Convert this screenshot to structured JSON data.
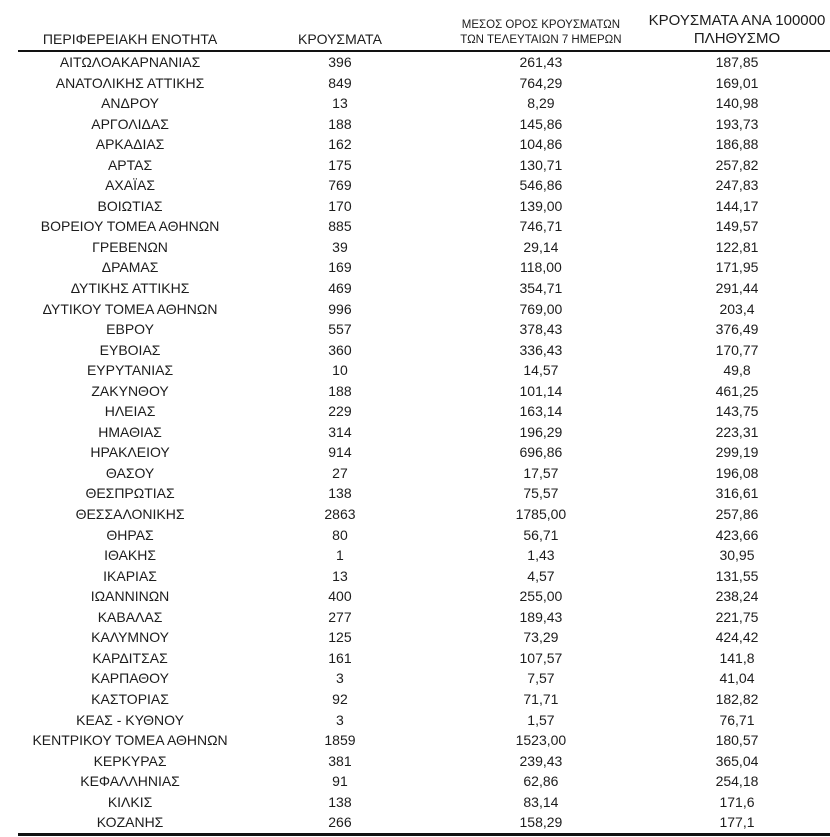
{
  "chart_data": {
    "type": "table",
    "columns": [
      "ΠΕΡΙΦΕΡΕΙΑΚΗ ΕΝΟΤΗΤΑ",
      "ΚΡΟΥΣΜΑΤΑ",
      "ΜΕΣΟΣ ΟΡΟΣ ΚΡΟΥΣΜΑΤΩΝ ΤΩΝ ΤΕΛΕΥΤΑΙΩΝ 7 ΗΜΕΡΩΝ",
      "ΚΡΟΥΣΜΑΤΑ ΑΝΑ 100000 ΠΛΗΘΥΣΜΟ"
    ],
    "header_display": [
      [
        "ΠΕΡΙΦΕΡΕΙΑΚΗ ΕΝΟΤΗΤΑ"
      ],
      [
        "ΚΡΟΥΣΜΑΤΑ"
      ],
      [
        "ΜΕΣΟΣ ΟΡΟΣ ΚΡΟΥΣΜΑΤΩΝ",
        "ΤΩΝ ΤΕΛΕΥΤΑΙΩΝ 7 ΗΜΕΡΩΝ"
      ],
      [
        "ΚΡΟΥΣΜΑΤΑ ΑΝΑ 100000",
        "ΠΛΗΘΥΣΜΟ"
      ]
    ],
    "decimal_separator": ",",
    "rows": [
      [
        "ΑΙΤΩΛΟΑΚΑΡΝΑΝΙΑΣ",
        "396",
        "261,43",
        "187,85"
      ],
      [
        "ΑΝΑΤΟΛΙΚΗΣ ΑΤΤΙΚΗΣ",
        "849",
        "764,29",
        "169,01"
      ],
      [
        "ΑΝΔΡΟΥ",
        "13",
        "8,29",
        "140,98"
      ],
      [
        "ΑΡΓΟΛΙΔΑΣ",
        "188",
        "145,86",
        "193,73"
      ],
      [
        "ΑΡΚΑΔΙΑΣ",
        "162",
        "104,86",
        "186,88"
      ],
      [
        "ΑΡΤΑΣ",
        "175",
        "130,71",
        "257,82"
      ],
      [
        "ΑΧΑΪΑΣ",
        "769",
        "546,86",
        "247,83"
      ],
      [
        "ΒΟΙΩΤΙΑΣ",
        "170",
        "139,00",
        "144,17"
      ],
      [
        "ΒΟΡΕΙΟΥ ΤΟΜΕΑ ΑΘΗΝΩΝ",
        "885",
        "746,71",
        "149,57"
      ],
      [
        "ΓΡΕΒΕΝΩΝ",
        "39",
        "29,14",
        "122,81"
      ],
      [
        "ΔΡΑΜΑΣ",
        "169",
        "118,00",
        "171,95"
      ],
      [
        "ΔΥΤΙΚΗΣ ΑΤΤΙΚΗΣ",
        "469",
        "354,71",
        "291,44"
      ],
      [
        "ΔΥΤΙΚΟΥ ΤΟΜΕΑ ΑΘΗΝΩΝ",
        "996",
        "769,00",
        "203,4"
      ],
      [
        "ΕΒΡΟΥ",
        "557",
        "378,43",
        "376,49"
      ],
      [
        "ΕΥΒΟΙΑΣ",
        "360",
        "336,43",
        "170,77"
      ],
      [
        "ΕΥΡΥΤΑΝΙΑΣ",
        "10",
        "14,57",
        "49,8"
      ],
      [
        "ΖΑΚΥΝΘΟΥ",
        "188",
        "101,14",
        "461,25"
      ],
      [
        "ΗΛΕΙΑΣ",
        "229",
        "163,14",
        "143,75"
      ],
      [
        "ΗΜΑΘΙΑΣ",
        "314",
        "196,29",
        "223,31"
      ],
      [
        "ΗΡΑΚΛΕΙΟΥ",
        "914",
        "696,86",
        "299,19"
      ],
      [
        "ΘΑΣΟΥ",
        "27",
        "17,57",
        "196,08"
      ],
      [
        "ΘΕΣΠΡΩΤΙΑΣ",
        "138",
        "75,57",
        "316,61"
      ],
      [
        "ΘΕΣΣΑΛΟΝΙΚΗΣ",
        "2863",
        "1785,00",
        "257,86"
      ],
      [
        "ΘΗΡΑΣ",
        "80",
        "56,71",
        "423,66"
      ],
      [
        "ΙΘΑΚΗΣ",
        "1",
        "1,43",
        "30,95"
      ],
      [
        "ΙΚΑΡΙΑΣ",
        "13",
        "4,57",
        "131,55"
      ],
      [
        "ΙΩΑΝΝΙΝΩΝ",
        "400",
        "255,00",
        "238,24"
      ],
      [
        "ΚΑΒΑΛΑΣ",
        "277",
        "189,43",
        "221,75"
      ],
      [
        "ΚΑΛΥΜΝΟΥ",
        "125",
        "73,29",
        "424,42"
      ],
      [
        "ΚΑΡΔΙΤΣΑΣ",
        "161",
        "107,57",
        "141,8"
      ],
      [
        "ΚΑΡΠΑΘΟΥ",
        "3",
        "7,57",
        "41,04"
      ],
      [
        "ΚΑΣΤΟΡΙΑΣ",
        "92",
        "71,71",
        "182,82"
      ],
      [
        "ΚΕΑΣ - ΚΥΘΝΟΥ",
        "3",
        "1,57",
        "76,71"
      ],
      [
        "ΚΕΝΤΡΙΚΟΥ ΤΟΜΕΑ ΑΘΗΝΩΝ",
        "1859",
        "1523,00",
        "180,57"
      ],
      [
        "ΚΕΡΚΥΡΑΣ",
        "381",
        "239,43",
        "365,04"
      ],
      [
        "ΚΕΦΑΛΛΗΝΙΑΣ",
        "91",
        "62,86",
        "254,18"
      ],
      [
        "ΚΙΛΚΙΣ",
        "138",
        "83,14",
        "171,6"
      ],
      [
        "ΚΟΖΑΝΗΣ",
        "266",
        "158,29",
        "177,1"
      ]
    ]
  },
  "style": {
    "background": "#ffffff",
    "text_color": "#1c1c1c",
    "rule_color": "#121212"
  }
}
